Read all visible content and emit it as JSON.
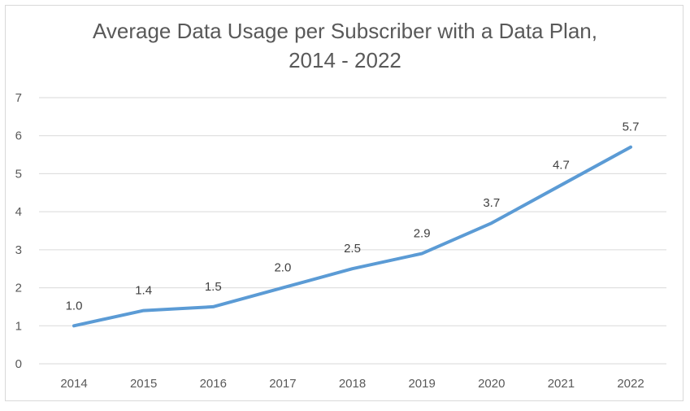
{
  "chart_data": {
    "type": "line",
    "title_line1": "Average Data Usage per Subscriber with a Data Plan,",
    "title_line2": "2014 - 2022",
    "xlabel": "",
    "ylabel": "",
    "categories": [
      "2014",
      "2015",
      "2016",
      "2017",
      "2018",
      "2019",
      "2020",
      "2021",
      "2022"
    ],
    "series": [
      {
        "values": [
          1.0,
          1.4,
          1.5,
          2.0,
          2.5,
          2.9,
          3.7,
          4.7,
          5.7
        ],
        "data_labels": [
          "1.0",
          "1.4",
          "1.5",
          "2.0",
          "2.5",
          "2.9",
          "3.7",
          "4.7",
          "5.7"
        ],
        "color": "#5b9bd5"
      }
    ],
    "ylim": [
      0,
      7
    ],
    "yticks": [
      "0",
      "1",
      "2",
      "3",
      "4",
      "5",
      "6",
      "7"
    ],
    "grid": true,
    "legend": "none",
    "gridline_color": "#d9d9d9"
  }
}
